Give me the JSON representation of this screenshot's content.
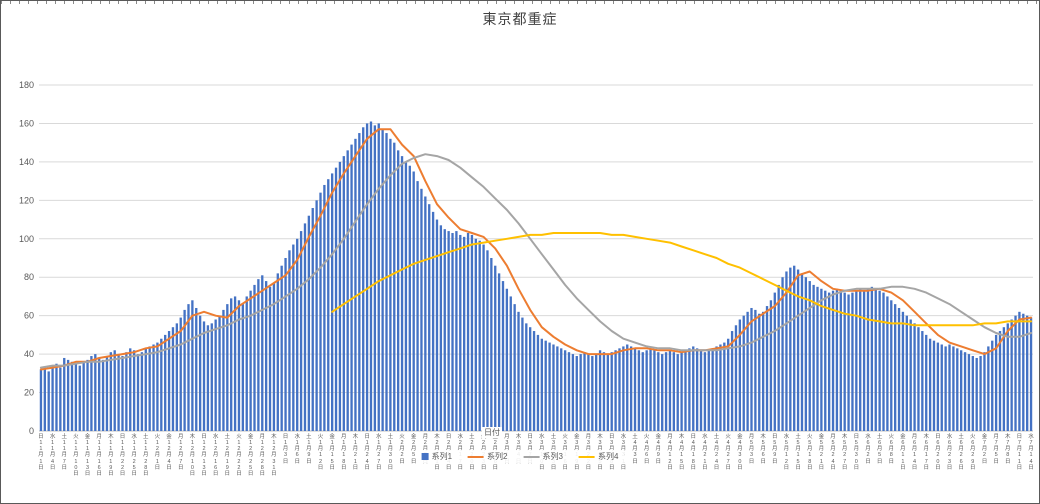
{
  "title": "東京都重症",
  "x_axis_title": "日付",
  "y_axis_ticks": [
    "0",
    "20",
    "40",
    "60",
    "80",
    "100",
    "120",
    "140",
    "160",
    "180"
  ],
  "colors": {
    "grid": "#D9D9D9",
    "axis": "#BFBFBF",
    "text": "#595959",
    "title": "#404040"
  },
  "legend": [
    {
      "label": "系列1",
      "marker": "square",
      "color": "#4472C4"
    },
    {
      "label": "系列2",
      "marker": "line",
      "color": "#ED7D31"
    },
    {
      "label": "系列3",
      "marker": "line",
      "color": "#A5A5A5"
    },
    {
      "label": "系列4",
      "marker": "line",
      "color": "#FFC000"
    }
  ],
  "chart_data": {
    "type": "bar",
    "subtype": "combo bar + 3 line series",
    "title": "東京都重症",
    "ylim": [
      0,
      180
    ],
    "y_tick_step": 20,
    "tick_interval_days": 3,
    "x_range_visible": "11月1日〜7月14日",
    "tick_weekdays": [
      "日",
      "水",
      "土",
      "火",
      "金",
      "月",
      "木",
      "日",
      "水",
      "土",
      "火",
      "金",
      "月",
      "木",
      "日",
      "水",
      "土",
      "火",
      "金",
      "月",
      "木",
      "日",
      "水",
      "土",
      "火",
      "金",
      "月",
      "木",
      "日",
      "水",
      "土",
      "火",
      "金",
      "月",
      "木",
      "日",
      "水",
      "土",
      "火",
      "金",
      "月",
      "木",
      "日",
      "水",
      "土",
      "火",
      "金",
      "月",
      "木",
      "日",
      "水",
      "土",
      "火",
      "金",
      "月",
      "木",
      "日",
      "水",
      "土",
      "火",
      "金",
      "月",
      "木",
      "日",
      "水",
      "土",
      "火",
      "金",
      "月",
      "木",
      "日",
      "水",
      "土",
      "火",
      "金",
      "月",
      "木",
      "日",
      "水",
      "土",
      "火",
      "金",
      "月",
      "木",
      "日",
      "水"
    ],
    "tick_dates": [
      "11月1日",
      "11月4日",
      "11月7日",
      "11月10日",
      "11月13日",
      "11月16日",
      "11月19日",
      "11月22日",
      "11月25日",
      "11月28日",
      "12月1日",
      "12月4日",
      "12月7日",
      "12月10日",
      "12月13日",
      "12月16日",
      "12月19日",
      "12月22日",
      "12月25日",
      "12月28日",
      "12月31日",
      "1月3日",
      "1月6日",
      "1月9日",
      "1月12日",
      "1月15日",
      "1月18日",
      "1月21日",
      "1月24日",
      "1月27日",
      "1月30日",
      "2月2日",
      "2月5日",
      "2月8日",
      "2月11日",
      "2月14日",
      "2月17日",
      "2月20日",
      "2月23日",
      "2月26日",
      "3月1日",
      "3月4日",
      "3月7日",
      "3月10日",
      "3月13日",
      "3月16日",
      "3月19日",
      "3月22日",
      "3月25日",
      "3月28日",
      "3月31日",
      "4月3日",
      "4月6日",
      "4月9日",
      "4月12日",
      "4月15日",
      "4月18日",
      "4月21日",
      "4月24日",
      "4月27日",
      "4月30日",
      "5月3日",
      "5月6日",
      "5月9日",
      "5月12日",
      "5月15日",
      "5月18日",
      "5月21日",
      "5月24日",
      "5月27日",
      "5月30日",
      "6月2日",
      "6月5日",
      "6月8日",
      "6月11日",
      "6月14日",
      "6月17日",
      "6月20日",
      "6月23日",
      "6月26日",
      "6月29日",
      "7月2日",
      "7月5日",
      "7月8日",
      "7月11日",
      "7月14日"
    ],
    "series": [
      {
        "name": "系列1",
        "type": "bar",
        "color": "#4472C4",
        "daily": true,
        "values": [
          32,
          33,
          31,
          34,
          35,
          33,
          38,
          37,
          36,
          35,
          34,
          36,
          37,
          39,
          40,
          38,
          37,
          39,
          41,
          42,
          40,
          39,
          41,
          43,
          42,
          40,
          41,
          43,
          44,
          45,
          46,
          48,
          50,
          52,
          54,
          56,
          59,
          63,
          66,
          68,
          64,
          60,
          57,
          55,
          56,
          58,
          60,
          63,
          66,
          69,
          70,
          68,
          66,
          70,
          73,
          76,
          79,
          81,
          78,
          75,
          77,
          82,
          86,
          90,
          94,
          97,
          100,
          104,
          108,
          112,
          116,
          120,
          124,
          128,
          131,
          134,
          137,
          140,
          143,
          146,
          149,
          152,
          155,
          158,
          160,
          161,
          159,
          160,
          157,
          155,
          152,
          150,
          146,
          143,
          140,
          138,
          135,
          130,
          126,
          122,
          118,
          114,
          110,
          107,
          105,
          104,
          103,
          104,
          102,
          101,
          103,
          102,
          100,
          99,
          97,
          94,
          90,
          86,
          82,
          78,
          74,
          70,
          66,
          62,
          59,
          56,
          54,
          52,
          50,
          48,
          47,
          46,
          45,
          44,
          43,
          42,
          41,
          40,
          39,
          40,
          41,
          40,
          39,
          40,
          42,
          41,
          40,
          41,
          42,
          43,
          44,
          45,
          44,
          43,
          42,
          41,
          42,
          43,
          42,
          41,
          40,
          41,
          42,
          41,
          40,
          41,
          42,
          43,
          44,
          43,
          42,
          41,
          42,
          43,
          44,
          45,
          46,
          48,
          52,
          55,
          58,
          60,
          62,
          64,
          63,
          61,
          62,
          65,
          68,
          72,
          76,
          80,
          83,
          85,
          86,
          84,
          82,
          80,
          78,
          76,
          75,
          74,
          73,
          72,
          73,
          74,
          73,
          72,
          71,
          72,
          73,
          74,
          73,
          74,
          75,
          74,
          73,
          72,
          70,
          68,
          66,
          64,
          62,
          60,
          58,
          56,
          54,
          52,
          50,
          48,
          47,
          46,
          45,
          44,
          45,
          44,
          43,
          42,
          41,
          40,
          39,
          38,
          39,
          41,
          44,
          47,
          50,
          52,
          54,
          56,
          58,
          60,
          62,
          61,
          60,
          59
        ]
      },
      {
        "name": "系列2",
        "type": "line",
        "color": "#ED7D31",
        "sampled_every_days": 3,
        "values": [
          32,
          33,
          34,
          36,
          36,
          38,
          39,
          40,
          41,
          43,
          44,
          48,
          52,
          60,
          62,
          60,
          59,
          65,
          69,
          73,
          77,
          81,
          89,
          101,
          112,
          124,
          134,
          143,
          152,
          157,
          157,
          149,
          143,
          130,
          118,
          111,
          105,
          103,
          101,
          95,
          86,
          74,
          63,
          54,
          49,
          45,
          42,
          40,
          40,
          40,
          42,
          43,
          43,
          42,
          42,
          41,
          42,
          42,
          43,
          44,
          50,
          57,
          61,
          65,
          72,
          81,
          83,
          78,
          74,
          73,
          73,
          73,
          74,
          72,
          68,
          62,
          56,
          50,
          46,
          44,
          42,
          40,
          43,
          52,
          58,
          59
        ]
      },
      {
        "name": "系列3",
        "type": "line",
        "color": "#A5A5A5",
        "sampled_every_days": 3,
        "values": [
          33,
          34,
          34,
          35,
          36,
          36,
          37,
          38,
          39,
          40,
          41,
          43,
          45,
          48,
          51,
          53,
          55,
          58,
          60,
          63,
          66,
          70,
          74,
          79,
          85,
          92,
          100,
          109,
          118,
          126,
          133,
          139,
          142,
          144,
          143,
          141,
          137,
          132,
          127,
          121,
          115,
          108,
          100,
          92,
          84,
          76,
          69,
          63,
          57,
          52,
          48,
          46,
          44,
          43,
          43,
          42,
          42,
          42,
          42,
          43,
          44,
          46,
          49,
          52,
          56,
          60,
          64,
          68,
          71,
          73,
          74,
          74,
          74,
          75,
          75,
          74,
          72,
          69,
          66,
          62,
          58,
          54,
          51,
          49,
          49,
          51
        ]
      },
      {
        "name": "系列4",
        "type": "line",
        "color": "#FFC000",
        "sampled_every_days": 3,
        "values": [
          null,
          null,
          null,
          null,
          null,
          null,
          null,
          null,
          null,
          null,
          null,
          null,
          null,
          null,
          null,
          null,
          null,
          null,
          null,
          null,
          null,
          null,
          null,
          null,
          null,
          62,
          66,
          70,
          74,
          78,
          81,
          84,
          87,
          89,
          91,
          93,
          95,
          97,
          98,
          99,
          100,
          101,
          102,
          102,
          103,
          103,
          103,
          103,
          103,
          102,
          102,
          101,
          100,
          99,
          98,
          96,
          94,
          92,
          90,
          87,
          85,
          82,
          79,
          76,
          73,
          70,
          68,
          65,
          63,
          61,
          60,
          58,
          57,
          56,
          56,
          55,
          55,
          55,
          55,
          55,
          55,
          56,
          56,
          57,
          57,
          57
        ]
      }
    ]
  }
}
